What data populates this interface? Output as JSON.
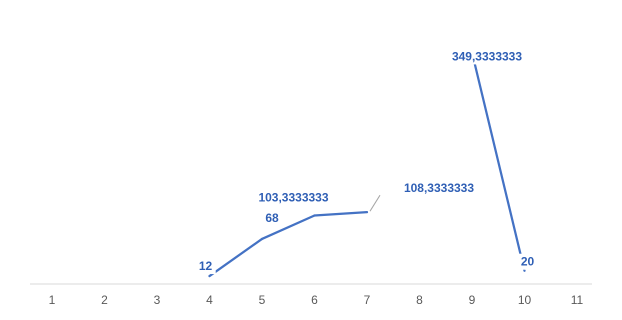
{
  "chart_data": {
    "type": "line",
    "x": [
      1,
      2,
      3,
      4,
      5,
      6,
      7,
      8,
      9,
      10,
      11
    ],
    "series": [
      {
        "values": [
          null,
          null,
          null,
          12,
          68,
          103.3333333,
          108.3333333,
          null,
          349.3333333,
          20,
          null
        ],
        "labels": [
          "",
          "",
          "",
          "12",
          "68",
          "103,3333333",
          "108,3333333",
          "",
          "349,3333333",
          "20",
          ""
        ],
        "color": "#4472c4"
      }
    ],
    "xlim": [
      1,
      11
    ],
    "grid": false,
    "legend": "none",
    "axis_color": "#d9d9d9",
    "tick_color": "#595959",
    "label_color": "#2f5fb5"
  }
}
